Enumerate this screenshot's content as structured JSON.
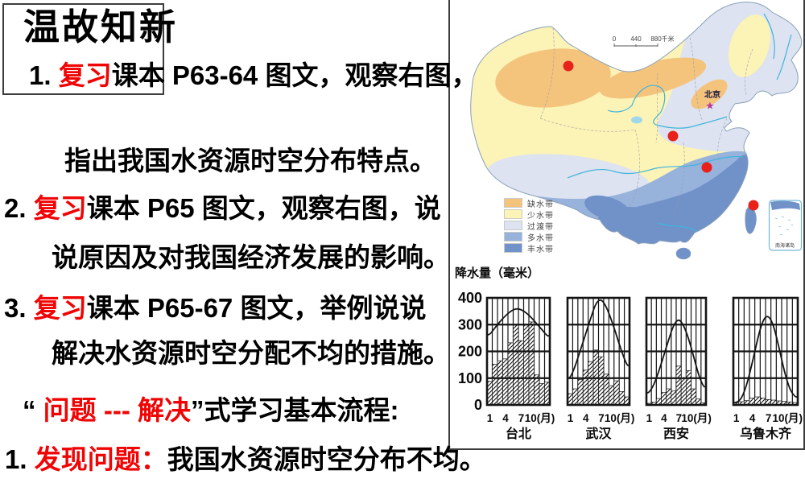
{
  "slide": {
    "title": "温故知新",
    "lines": {
      "l1": {
        "num": "1.",
        "red": "复习",
        "rest": "课本 P63-64 图文，观察右图，"
      },
      "l2": {
        "text": "指出我国水资源时空分布特点。"
      },
      "l3": {
        "num": "2.",
        "red": "复习",
        "rest": "课本 P65 图文，观察右图，说"
      },
      "l4": {
        "text": "说原因及对我国经济发展的影响。"
      },
      "l5": {
        "num": "3.",
        "red": "复习",
        "rest": "课本 P65-67 图文，举例说说"
      },
      "l6": {
        "text": "解决水资源时空分配不均的措施。"
      },
      "l7": {
        "open": "“ ",
        "red": "问题 --- 解决",
        "close": "”",
        "rest": "式学习基本流程:"
      },
      "l8": {
        "num": "1.",
        "red": "发现问题：",
        "rest": "我国水资源时空分布不均。"
      }
    }
  },
  "map": {
    "scale": {
      "zero": "0",
      "mid": "440",
      "end": "880千米"
    },
    "beijing_label": "北京",
    "inset_label": "南海诸岛",
    "city_dot_color": "#e8211b",
    "legend": [
      {
        "label": "缺水带",
        "color": "#f4c47d"
      },
      {
        "label": "少水带",
        "color": "#fcf3b6"
      },
      {
        "label": "过渡带",
        "color": "#dde3f0"
      },
      {
        "label": "多水带",
        "color": "#97b3dc"
      },
      {
        "label": "丰水带",
        "color": "#7191c9"
      }
    ]
  },
  "chart_data": {
    "type": "bar",
    "title": "降水量（毫米）",
    "ylabel": "降水量（毫米）",
    "ylim": [
      0,
      400
    ],
    "yticks": [
      400,
      300,
      200,
      100,
      0
    ],
    "xticks": [
      "1",
      "4",
      "7",
      "10(月)"
    ],
    "grid": true,
    "x_unit": "月",
    "panels": [
      {
        "city": "台北",
        "values": [
          88,
          152,
          165,
          172,
          232,
          298,
          240,
          302,
          310,
          112,
          80,
          85
        ],
        "curve": [
          262,
          288,
          312,
          333,
          350,
          360,
          357,
          344,
          326,
          303,
          281,
          258
        ]
      },
      {
        "city": "武汉",
        "values": [
          42,
          60,
          95,
          130,
          162,
          205,
          180,
          115,
          72,
          90,
          50,
          30
        ],
        "curve": [
          100,
          145,
          205,
          265,
          325,
          382,
          396,
          368,
          318,
          258,
          198,
          148
        ]
      },
      {
        "city": "西安",
        "values": [
          6,
          10,
          24,
          46,
          60,
          52,
          145,
          100,
          128,
          60,
          22,
          8
        ],
        "curve": [
          45,
          75,
          125,
          185,
          245,
          300,
          322,
          298,
          248,
          182,
          112,
          68
        ]
      },
      {
        "city": "乌鲁木齐",
        "values": [
          10,
          12,
          16,
          26,
          30,
          26,
          20,
          18,
          15,
          13,
          11,
          9
        ],
        "curve": [
          8,
          22,
          75,
          155,
          245,
          318,
          336,
          298,
          215,
          125,
          58,
          30
        ]
      }
    ]
  }
}
